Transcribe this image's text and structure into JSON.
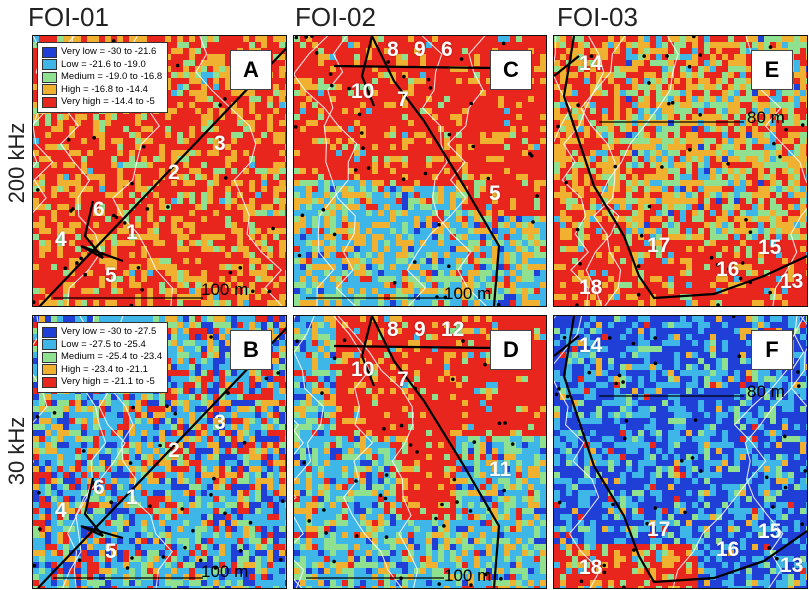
{
  "columns": [
    "FOI-01",
    "FOI-02",
    "FOI-03"
  ],
  "rows": [
    "200 kHz",
    "30 kHz"
  ],
  "legends": {
    "A": [
      {
        "label": "Very low = -30 to -21.6",
        "color": "#1f3fd6"
      },
      {
        "label": "Low = -21.6 to -19.0",
        "color": "#3fb6e8"
      },
      {
        "label": "Medium = -19.0 to -16.8",
        "color": "#8fe08f"
      },
      {
        "label": "High = -16.8 to -14.4",
        "color": "#f0b030"
      },
      {
        "label": "Very high = -14.4 to -5",
        "color": "#e8261e"
      }
    ],
    "B": [
      {
        "label": "Very low = -30 to -27.5",
        "color": "#1f3fd6"
      },
      {
        "label": "Low = -27.5 to -25.4",
        "color": "#3fb6e8"
      },
      {
        "label": "Medium = -25.4 to -23.4",
        "color": "#8fe08f"
      },
      {
        "label": "High = -23.4 to -21.1",
        "color": "#f0b030"
      },
      {
        "label": "Very high = -21.1 to -5",
        "color": "#e8261e"
      }
    ]
  },
  "panels": {
    "A": {
      "letter": "A",
      "scale": "100 m",
      "markers": [
        "3",
        "2",
        "6",
        "1",
        "4",
        "5"
      ]
    },
    "B": {
      "letter": "B",
      "scale": "100 m",
      "markers": [
        "3",
        "2",
        "6",
        "1",
        "4",
        "5"
      ]
    },
    "C": {
      "letter": "C",
      "scale": "100 m",
      "markers": [
        "8",
        "9",
        "6",
        "10",
        "7",
        "5"
      ]
    },
    "D": {
      "letter": "D",
      "scale": "100 m",
      "markers": [
        "8",
        "9",
        "12",
        "10",
        "7",
        "11"
      ]
    },
    "E": {
      "letter": "E",
      "scale": "80 m",
      "markers": [
        "14",
        "17",
        "15",
        "16",
        "18",
        "13"
      ]
    },
    "F": {
      "letter": "F",
      "scale": "80 m",
      "markers": [
        "14",
        "17",
        "15",
        "16",
        "18",
        "13"
      ]
    }
  }
}
